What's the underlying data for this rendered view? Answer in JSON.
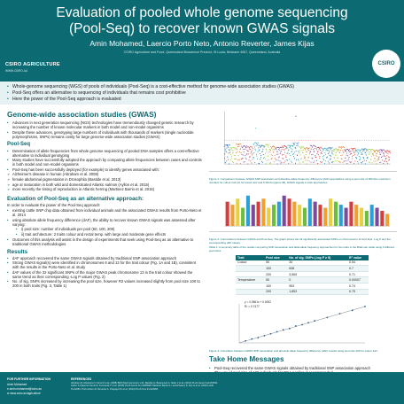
{
  "header": {
    "title_line1": "Evaluation of pooled whole genome sequencing",
    "title_line2": "(Pool-Seq) to recover known GWAS signals",
    "authors": "Amin Mohamed, Laercio Porto Neto, Antonio Reverter, James Kijas",
    "affiliation": "CSIRO Agriculture and Food, Queensland Bioscience Precinct, St Lucia, Brisbane 4067, Queensland, Australia",
    "brand": "CSIRO AGRICULTURE",
    "brand_sub": "WWW.CSIRO.AU",
    "logo_text": "CSIRO"
  },
  "intro": [
    "Whole-genome sequencing (WGS) of pools of individuals (Pool-Seq) is a cost-effective method for genome-wide association studies (GWAS)",
    "Pool-Seq offers an alternative to sequencing of individuals that remains cost prohibitive",
    "Here the power of the Pool-Seq approach is evaluated"
  ],
  "left": {
    "gwas_heading": "Genome-wide association studies (GWAS)",
    "gwas_bullets": [
      "Advances in next generation sequencing (NGS) technologies have tremendously changed genetic research by increasing the number of known molecular markers in both model and non-model organisms",
      "Despite these advances, genotyping large numbers of individuals with thousands of markers (single nucleotide polymorphisms, SNPs) remains costly for large genome-wide association studies (GWAS)"
    ],
    "poolseq_heading": "Pool-Seq",
    "poolseq_bullets": [
      "Determination of allele frequencies from whole genome sequencing of pooled DNA samples offers a cost-effective alternative to individual genotyping",
      "Many studies have successfully adopted the approach by comparing allele frequencies between cases and controls in both model and non-model organisms",
      "Pool-Seq has been successfully deployed (for example) to identify genes associated with:"
    ],
    "poolseq_examples": [
      "Alzheimer's disease in human (Abraham et al. 2008)",
      "female abdominal pigmentation in Drosophila (Bastide et al. 2013)",
      "age at maturation in both wild and domesticated Atlantic salmon (Ayllon et al. 2015)",
      "more recently the timing of reproduction in Atlantic herring (Martinez Barrio et al. 2016)"
    ],
    "eval_heading": "Evaluation of Pool-Seq as an alternative approach:",
    "eval_intro": "In order to evaluate the power of the Pool-Seq approach:",
    "eval_bullets": [
      "existing cattle SNP chip data obtained from individual animals and the associated GWAS results from Porto-Neto et al. 2014",
      "using absolute allele frequency difference (dAF), the ability to recover known GWAS signals was assessed after varying:"
    ],
    "eval_items": [
      "i)  pool size: number of individuals per pool (50, 100, 200)",
      "ii) trait architecture: 2 traits colour and rectal temp. with large and moderate gene effects"
    ],
    "eval_outcome": "Outcomes of this analysis will assist in the design of experiments that seek using Pool-Seq as an alternative to traditional GWAS methodologies",
    "results_heading": "Results",
    "results_bullets": [
      "dAF approach recovered the same GWAS signals obtained by traditional SNP association approach",
      "Strong GWAS signal(s) were identified in chromosomes 6 and 13 for the trait colour (Fig. 1A and 1B), consistent with the results in the Porto-Neto et al. study",
      "dAF values of the 32 significant SNPs of the major GWAS peak chromosome 13 in the trait colour showed the same trend as their corresponding -Log P values (Fig. 2)",
      "No. of sig. SNPs increased by increasing the pool size, however R2 values increased slightly from pool size 100 to 200 in both traits (Fig. 3, Table 1)"
    ]
  },
  "right": {
    "fig1_caption": "Figure 1: Comparison between GWAS SNP association and absolute allele frequency difference (dAF) approaches using a pool size of 200 (the maximum number) for colour trait (A) for known loci and 6 WGS regions (B); GWAS signals in both approaches",
    "fig2_caption": "Figure 2: Concordance between GWAS and Pool-Seq. The graph shows the 32 significantly associated SNPs on chromosome 13 and their -Log P and the corresponding dAF values",
    "table_caption": "Table 1: A summary table of the results comparing SNP association and delta allele frequency approaches for two traits in the Brahman cattle using 3 different pool sizes",
    "table": {
      "headers": [
        "Trait",
        "Pool size",
        "No. of sig. SNPs (-log P ≥ 5)",
        "R² value"
      ],
      "rows": [
        [
          "Colour",
          "50",
          "34",
          "0.54"
        ],
        [
          "",
          "100",
          "638",
          "0.7"
        ],
        [
          "",
          "200",
          "3,569",
          "0.71"
        ],
        [
          "Temperature",
          "50",
          "0",
          "0.00007"
        ],
        [
          "",
          "100",
          "953",
          "0.74"
        ],
        [
          "",
          "200",
          "1,853",
          "0.75"
        ]
      ]
    },
    "scatter_eq": "y = 0.0561x + 0.0002",
    "scatter_r2": "R² = 0.7477",
    "scatter_caption": "Figure 3: Correlation between GWAS SNP association and absolute allele frequency difference (dAF) results using pool size 200 for colour trait",
    "takehome_heading": "Take Home Messages",
    "takehome_bullets": [
      "Pool-Seq recovered the same GWAS signals obtained by traditional SNP association approach",
      "The use of pool size of 100 individuals for DNA pooling is recommended",
      "It is possible to collect samples from only the phenotypic extremes within a population"
    ]
  },
  "footer": {
    "info_heading": "FOR FURTHER INFORMATION",
    "info_name": "Amin Mohamed",
    "info_email": "e  amin.mohamed@csiro.au",
    "info_web": "w  www.csiro.au/agriculture",
    "refs_heading": "REFERENCES",
    "refs": "Abraham R, Moskvina V, Sims R et al. (2008) BMC Med Genomics 1:44. Bastide H, Betancourt A, Nolte V et al. (2013) PLoS Genet 9:e1003534. Ayllon F, Kjaerner-Semb E, Furmanek T et al. (2015) PLoS Genet 11:e1005628. Martinez Barrio A, Lamichhaney S, Fan G et al. (2016) eLife 5:e12081. Porto-Neto LR, Reverter A, Prayaga KC et al. (2014) PLoS One 9:e113284."
  },
  "chart_data": [
    {
      "type": "scatter",
      "panel": "manhattan",
      "xlabel": "",
      "ylabel": "",
      "x": [
        1,
        2,
        3,
        4,
        5,
        6,
        7,
        8,
        9,
        10,
        11,
        12,
        13,
        14,
        15,
        16,
        17,
        18,
        19,
        20,
        21,
        22,
        23,
        24,
        25,
        26,
        27,
        28,
        29
      ],
      "values": [
        4,
        3.5,
        4.2,
        3.8,
        3.6,
        7.5,
        3.9,
        4.1,
        3.7,
        3.5,
        3.8,
        3.9,
        10,
        3.6,
        3.4,
        3.9,
        3.5,
        3.3,
        3.4,
        3.2,
        3.6,
        3.1,
        3.3,
        3.0,
        3.2,
        3.1,
        2.9,
        3.0,
        2.8
      ]
    },
    {
      "type": "bar",
      "panel": "concordance",
      "categories": [
        "1",
        "2",
        "3",
        "4",
        "5",
        "6",
        "7",
        "8",
        "9",
        "10",
        "11",
        "12",
        "13",
        "14",
        "15",
        "16",
        "17",
        "18",
        "19",
        "20",
        "21",
        "22",
        "23",
        "24",
        "25",
        "26",
        "27",
        "28",
        "29",
        "30",
        "31",
        "32"
      ],
      "values": [
        8,
        7,
        9,
        6,
        10,
        7,
        8,
        9,
        6,
        7,
        8,
        10,
        9,
        8,
        7,
        6,
        9,
        8,
        7,
        6,
        9,
        8,
        7,
        6,
        8,
        7,
        6,
        5,
        7,
        6,
        5,
        4
      ],
      "ylim": [
        0,
        12
      ]
    },
    {
      "type": "scatter",
      "panel": "correlation",
      "x": [
        0.5,
        1,
        1.5,
        2,
        2.5,
        3,
        3.5,
        4,
        4.5,
        5,
        5.5,
        6,
        7,
        8,
        9,
        10
      ],
      "y": [
        0.03,
        0.06,
        0.08,
        0.11,
        0.14,
        0.17,
        0.2,
        0.22,
        0.26,
        0.28,
        0.31,
        0.34,
        0.39,
        0.45,
        0.5,
        0.56
      ]
    }
  ]
}
